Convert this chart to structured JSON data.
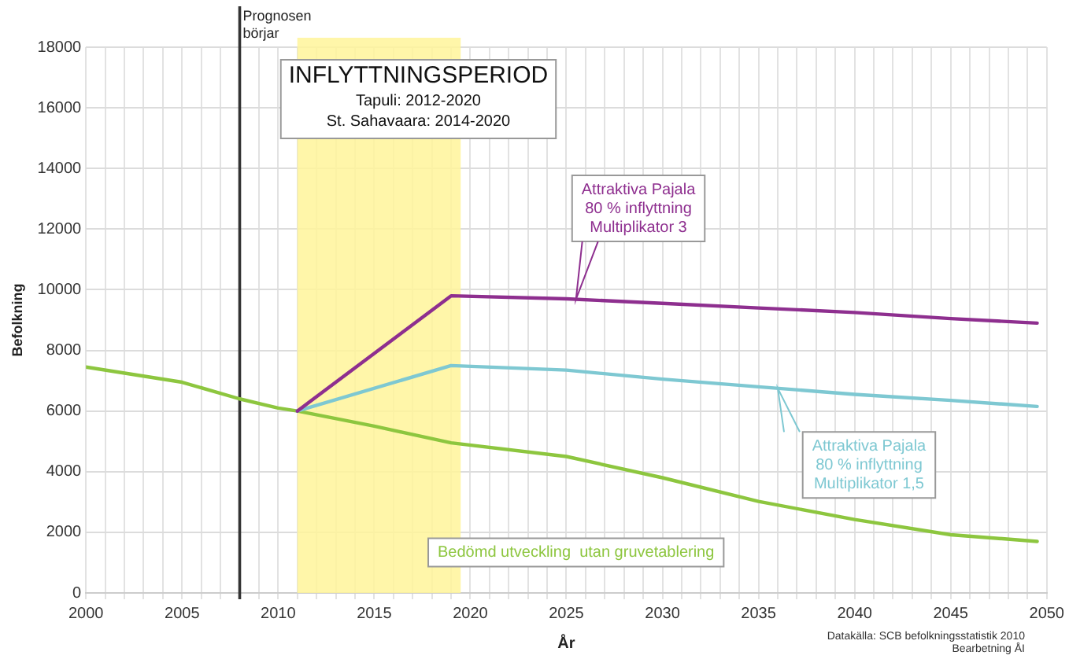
{
  "chart_data": {
    "type": "line",
    "xlabel": "År",
    "ylabel": "Befolkning",
    "xlim": [
      2000,
      2050
    ],
    "ylim": [
      0,
      18000
    ],
    "xticks": [
      2000,
      {
        "value": 2001,
        "label": null
      },
      {
        "value": 2002,
        "label": null
      },
      {
        "value": 2003,
        "label": null
      },
      {
        "value": 2004,
        "label": null
      },
      2005,
      {
        "value": 2006,
        "label": null
      },
      {
        "value": 2007,
        "label": null
      },
      {
        "value": 2008,
        "label": null
      },
      {
        "value": 2009,
        "label": null
      },
      2010,
      {
        "value": 2011,
        "label": null
      },
      {
        "value": 2012,
        "label": null
      },
      {
        "value": 2013,
        "label": null
      },
      {
        "value": 2014,
        "label": null
      },
      2015,
      {
        "value": 2016,
        "label": null
      },
      {
        "value": 2017,
        "label": null
      },
      {
        "value": 2018,
        "label": null
      },
      {
        "value": 2019,
        "label": null
      },
      2020,
      {
        "value": 2021,
        "label": null
      },
      {
        "value": 2022,
        "label": null
      },
      {
        "value": 2023,
        "label": null
      },
      {
        "value": 2024,
        "label": null
      },
      2025,
      {
        "value": 2026,
        "label": null
      },
      {
        "value": 2027,
        "label": null
      },
      {
        "value": 2028,
        "label": null
      },
      {
        "value": 2029,
        "label": null
      },
      2030,
      {
        "value": 2031,
        "label": null
      },
      {
        "value": 2032,
        "label": null
      },
      {
        "value": 2033,
        "label": null
      },
      {
        "value": 2034,
        "label": null
      },
      2035,
      {
        "value": 2036,
        "label": null
      },
      {
        "value": 2037,
        "label": null
      },
      {
        "value": 2038,
        "label": null
      },
      {
        "value": 2039,
        "label": null
      },
      2040,
      {
        "value": 2041,
        "label": null
      },
      {
        "value": 2042,
        "label": null
      },
      {
        "value": 2043,
        "label": null
      },
      {
        "value": 2044,
        "label": null
      },
      2045,
      {
        "value": 2046,
        "label": null
      },
      {
        "value": 2047,
        "label": null
      },
      {
        "value": 2048,
        "label": null
      },
      {
        "value": 2049,
        "label": null
      },
      2050
    ],
    "yticks": [
      0,
      2000,
      4000,
      6000,
      8000,
      10000,
      12000,
      14000,
      16000,
      18000
    ],
    "grid": true,
    "legend": false,
    "marker": "none",
    "line_style": "solid",
    "series": [
      {
        "name": "Attraktiva Pajala\n80 % inflyttning\nMultiplikator 3",
        "color": "#8e2f8f",
        "x": [
          2011,
          2019,
          2025,
          2030,
          2035,
          2040,
          2045,
          2049.5
        ],
        "values": [
          6000,
          9800,
          9700,
          9550,
          9400,
          9250,
          9050,
          8900
        ]
      },
      {
        "name": "Attraktiva Pajala\n80 % inflyttning\nMultiplikator 1,5",
        "color": "#7ec8d2",
        "x": [
          2011,
          2019,
          2025,
          2030,
          2035,
          2040,
          2045,
          2049.5
        ],
        "values": [
          6000,
          7500,
          7350,
          7050,
          6800,
          6550,
          6350,
          6150
        ]
      },
      {
        "name": "Bedömd utveckling  utan gruvetablering",
        "color": "#8dc63f",
        "x": [
          2000,
          2005,
          2008,
          2010,
          2011,
          2015,
          2019,
          2025,
          2030,
          2035,
          2040,
          2045,
          2049.5
        ],
        "values": [
          7450,
          6950,
          6400,
          6100,
          6000,
          5500,
          4950,
          4500,
          3800,
          3020,
          2420,
          1920,
          1700
        ]
      }
    ],
    "ref_lines": [
      {
        "axis": "x",
        "value": 2008,
        "label": "Prognosen\nbörjar",
        "color": "#333333"
      }
    ],
    "bands": [
      {
        "axis": "x",
        "from": 2011,
        "to": 2019.5,
        "label": "INFLYTTNINGSPERIOD",
        "color": "#fff59a"
      }
    ],
    "annotations": [
      "Tapuli: 2012-2020",
      "St. Sahavaara: 2014-2020",
      "Datakälla: SCB befolkningsstatistik 2010",
      "Bearbetning ÅI"
    ]
  }
}
